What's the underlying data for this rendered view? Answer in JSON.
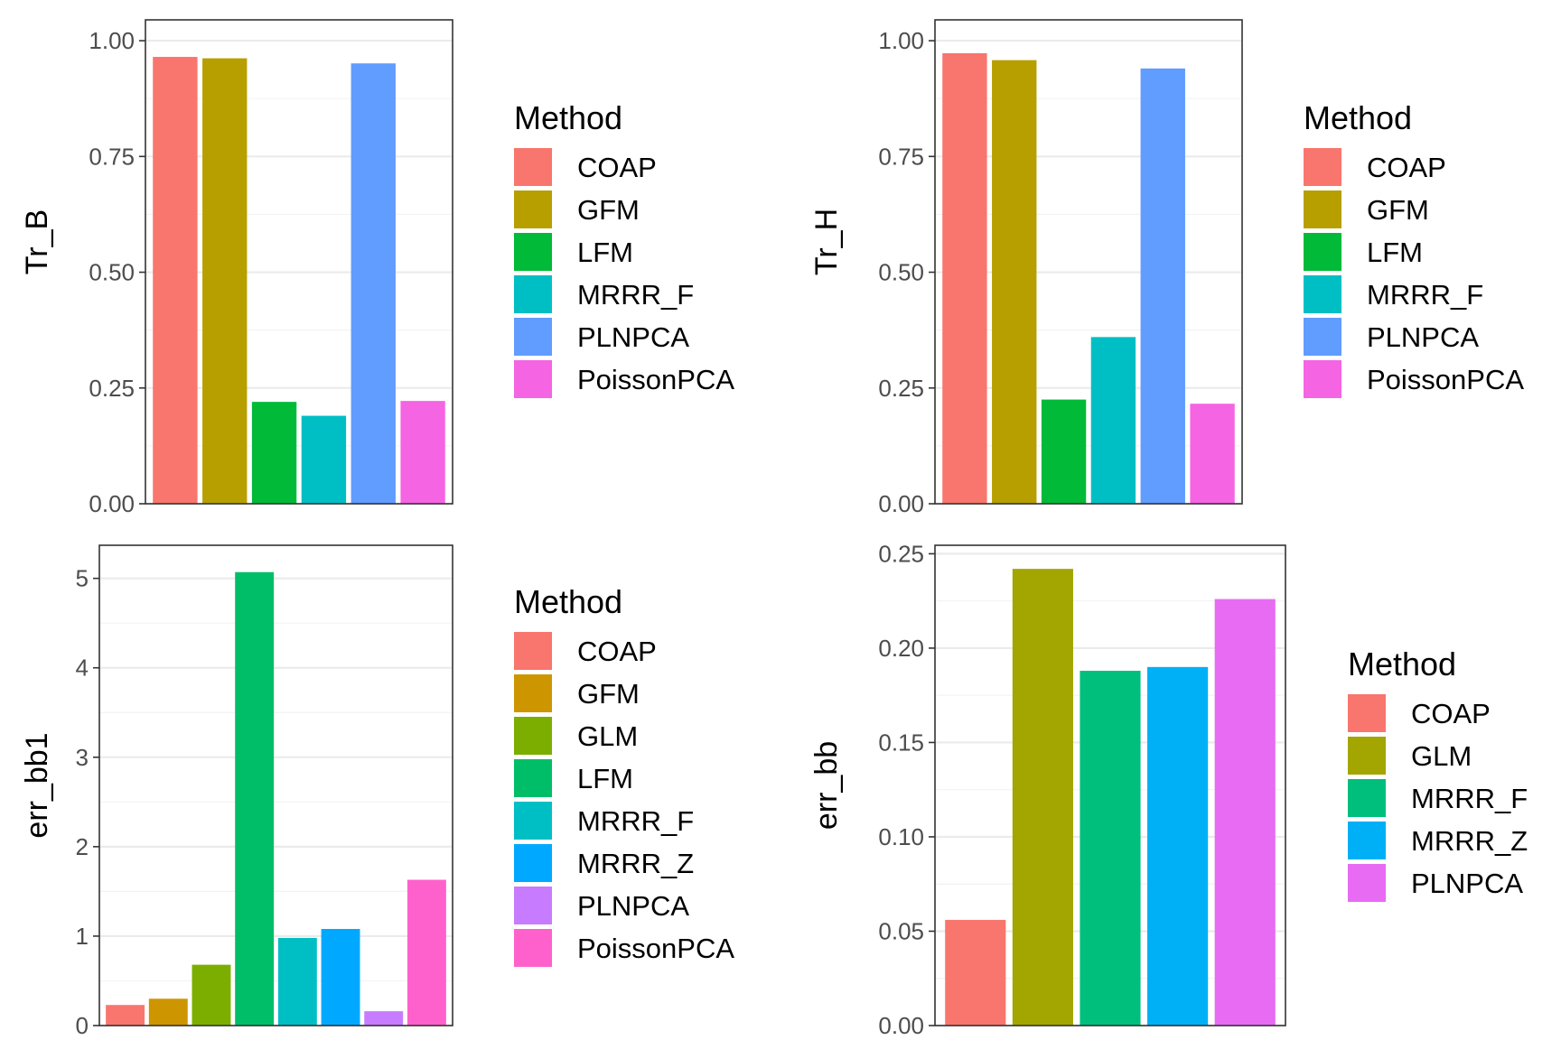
{
  "chart_data": [
    {
      "type": "bar",
      "ylabel": "Tr_B",
      "ylim": [
        0,
        1.045
      ],
      "yticks": [
        0,
        0.25,
        0.5,
        0.75,
        1.0
      ],
      "ytick_labels": [
        "0.00",
        "0.25",
        "0.50",
        "0.75",
        "1.00"
      ],
      "grid": true,
      "legend_title": "Method",
      "legend_position": "right",
      "categories": [
        "COAP",
        "GFM",
        "LFM",
        "MRRR_F",
        "PLNPCA",
        "PoissonPCA"
      ],
      "values": [
        0.965,
        0.962,
        0.22,
        0.19,
        0.951,
        0.222
      ],
      "colors": [
        "#F8766D",
        "#B79F00",
        "#00BA38",
        "#00BFC4",
        "#619CFF",
        "#F564E3"
      ]
    },
    {
      "type": "bar",
      "ylabel": "Tr_H",
      "ylim": [
        0,
        1.045
      ],
      "yticks": [
        0,
        0.25,
        0.5,
        0.75,
        1.0
      ],
      "ytick_labels": [
        "0.00",
        "0.25",
        "0.50",
        "0.75",
        "1.00"
      ],
      "grid": true,
      "legend_title": "Method",
      "legend_position": "right",
      "categories": [
        "COAP",
        "GFM",
        "LFM",
        "MRRR_F",
        "PLNPCA",
        "PoissonPCA"
      ],
      "values": [
        0.973,
        0.958,
        0.225,
        0.36,
        0.94,
        0.216
      ],
      "colors": [
        "#F8766D",
        "#B79F00",
        "#00BA38",
        "#00BFC4",
        "#619CFF",
        "#F564E3"
      ]
    },
    {
      "type": "bar",
      "ylabel": "err_bb1",
      "ylim": [
        0,
        5.37
      ],
      "yticks": [
        0,
        1,
        2,
        3,
        4,
        5
      ],
      "ytick_labels": [
        "0",
        "1",
        "2",
        "3",
        "4",
        "5"
      ],
      "grid": true,
      "legend_title": "Method",
      "legend_position": "right",
      "categories": [
        "COAP",
        "GFM",
        "GLM",
        "LFM",
        "MRRR_F",
        "MRRR_Z",
        "PLNPCA",
        "PoissonPCA"
      ],
      "values": [
        0.23,
        0.3,
        0.68,
        5.07,
        0.98,
        1.08,
        0.16,
        1.63
      ],
      "colors": [
        "#F8766D",
        "#CD9600",
        "#7CAE00",
        "#00BE67",
        "#00BFC4",
        "#00A9FF",
        "#C77CFF",
        "#FF61CC"
      ]
    },
    {
      "type": "bar",
      "ylabel": "err_bb",
      "ylim": [
        0,
        0.2545
      ],
      "yticks": [
        0,
        0.05,
        0.1,
        0.15,
        0.2,
        0.25
      ],
      "ytick_labels": [
        "0.00",
        "0.05",
        "0.10",
        "0.15",
        "0.20",
        "0.25"
      ],
      "grid": true,
      "legend_title": "Method",
      "legend_position": "right",
      "categories": [
        "COAP",
        "GLM",
        "MRRR_F",
        "MRRR_Z",
        "PLNPCA"
      ],
      "values": [
        0.056,
        0.242,
        0.188,
        0.19,
        0.226
      ],
      "colors": [
        "#F8766D",
        "#A3A500",
        "#00BF7D",
        "#00B0F6",
        "#E76BF3"
      ]
    }
  ]
}
